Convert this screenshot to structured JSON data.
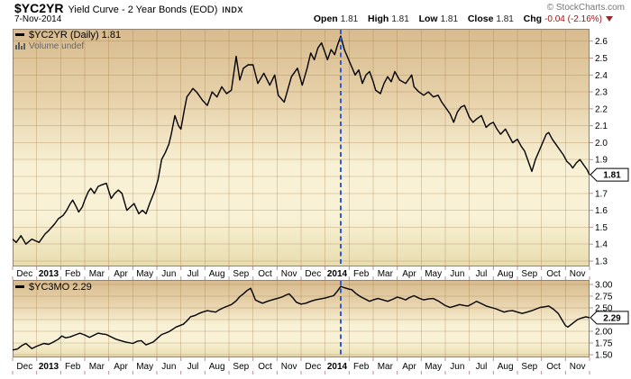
{
  "header": {
    "symbol": "$YC2YR",
    "description": "Yield Curve - 2 Year Bonds (EOD)",
    "exchange": "INDX",
    "copyright": "© StockCharts.com",
    "date": "7-Nov-2014",
    "quote": {
      "open_label": "Open",
      "open": "1.81",
      "high_label": "High",
      "high": "1.81",
      "low_label": "Low",
      "low": "1.81",
      "close_label": "Close",
      "close": "1.81",
      "chg_label": "Chg",
      "chg": "-0.04 (-2.16%)"
    }
  },
  "colors": {
    "line": "#000000",
    "dashed_vline": "#2E5BD8",
    "chg_negative": "#9d1010",
    "grid": "rgba(160,118,62,0.30)",
    "plot_border": "#94846F",
    "tick": "#C08F8F",
    "bg_top": "#D8BB8E",
    "bg_upper_mid": "#E7D2AB",
    "bg_mid": "#F8F1D5",
    "bg_bottom": "#E8DCAE",
    "muted_text": "#666666"
  },
  "chart_data": [
    {
      "type": "line",
      "name": "$YC2YR",
      "title": "Yield Curve - 2 Year Bonds (EOD)",
      "legend": "$YC2YR (Daily) 1.81",
      "legend2": "Volume undef",
      "last_label": "1.81",
      "last_value": 1.81,
      "x_unit": "months, Dec-2012 through Nov-2014",
      "categories": [
        "Dec",
        "2013",
        "Feb",
        "Mar",
        "Apr",
        "May",
        "Jun",
        "Jul",
        "Aug",
        "Sep",
        "Oct",
        "Nov",
        "Dec",
        "2014",
        "Feb",
        "Mar",
        "Apr",
        "May",
        "Jun",
        "Jul",
        "Aug",
        "Sep",
        "Oct",
        "Nov"
      ],
      "bold_categories": [
        1,
        13
      ],
      "ylim": [
        1.268,
        2.673
      ],
      "y_grid": [
        1.3,
        1.4,
        1.5,
        1.6,
        1.7,
        1.8,
        1.9,
        2.0,
        2.1,
        2.2,
        2.3,
        2.4,
        2.5,
        2.6
      ],
      "y_ticks": [
        {
          "v": 2.6,
          "label": "2.6"
        },
        {
          "v": 2.5,
          "label": "2.5"
        },
        {
          "v": 2.4,
          "label": "2.4"
        },
        {
          "v": 2.3,
          "label": "2.3"
        },
        {
          "v": 2.2,
          "label": "2.2"
        },
        {
          "v": 2.1,
          "label": "2.1"
        },
        {
          "v": 2.0,
          "label": "2.0"
        },
        {
          "v": 1.9,
          "label": "1.9"
        },
        {
          "v": 1.7,
          "label": "1.7"
        },
        {
          "v": 1.6,
          "label": "1.6"
        },
        {
          "v": 1.5,
          "label": "1.5"
        },
        {
          "v": 1.4,
          "label": "1.4"
        },
        {
          "v": 1.3,
          "label": "1.3"
        }
      ],
      "vline_month": 13.65,
      "points": [
        [
          0.0,
          1.43
        ],
        [
          0.15,
          1.41
        ],
        [
          0.35,
          1.45
        ],
        [
          0.55,
          1.4
        ],
        [
          0.8,
          1.43
        ],
        [
          1.1,
          1.41
        ],
        [
          1.35,
          1.46
        ],
        [
          1.5,
          1.48
        ],
        [
          1.75,
          1.52
        ],
        [
          1.9,
          1.55
        ],
        [
          2.1,
          1.57
        ],
        [
          2.25,
          1.6
        ],
        [
          2.4,
          1.64
        ],
        [
          2.5,
          1.66
        ],
        [
          2.65,
          1.62
        ],
        [
          2.75,
          1.59
        ],
        [
          2.9,
          1.62
        ],
        [
          3.0,
          1.66
        ],
        [
          3.15,
          1.71
        ],
        [
          3.25,
          1.73
        ],
        [
          3.4,
          1.7
        ],
        [
          3.55,
          1.74
        ],
        [
          3.7,
          1.75
        ],
        [
          3.9,
          1.76
        ],
        [
          4.1,
          1.67
        ],
        [
          4.25,
          1.7
        ],
        [
          4.4,
          1.72
        ],
        [
          4.55,
          1.7
        ],
        [
          4.75,
          1.6
        ],
        [
          4.9,
          1.62
        ],
        [
          5.05,
          1.64
        ],
        [
          5.25,
          1.58
        ],
        [
          5.4,
          1.6
        ],
        [
          5.55,
          1.58
        ],
        [
          5.7,
          1.64
        ],
        [
          5.9,
          1.71
        ],
        [
          6.05,
          1.78
        ],
        [
          6.2,
          1.9
        ],
        [
          6.35,
          1.94
        ],
        [
          6.5,
          1.99
        ],
        [
          6.6,
          2.05
        ],
        [
          6.75,
          2.16
        ],
        [
          6.9,
          2.1
        ],
        [
          7.0,
          2.08
        ],
        [
          7.15,
          2.2
        ],
        [
          7.25,
          2.27
        ],
        [
          7.4,
          2.3
        ],
        [
          7.5,
          2.32
        ],
        [
          7.65,
          2.3
        ],
        [
          7.75,
          2.28
        ],
        [
          7.9,
          2.25
        ],
        [
          8.1,
          2.22
        ],
        [
          8.3,
          2.3
        ],
        [
          8.5,
          2.27
        ],
        [
          8.7,
          2.33
        ],
        [
          8.9,
          2.29
        ],
        [
          9.1,
          2.31
        ],
        [
          9.3,
          2.51
        ],
        [
          9.45,
          2.37
        ],
        [
          9.6,
          2.44
        ],
        [
          9.8,
          2.46
        ],
        [
          10.0,
          2.46
        ],
        [
          10.2,
          2.35
        ],
        [
          10.45,
          2.41
        ],
        [
          10.7,
          2.34
        ],
        [
          10.9,
          2.4
        ],
        [
          11.05,
          2.28
        ],
        [
          11.3,
          2.24
        ],
        [
          11.6,
          2.39
        ],
        [
          11.85,
          2.44
        ],
        [
          12.05,
          2.34
        ],
        [
          12.25,
          2.44
        ],
        [
          12.4,
          2.53
        ],
        [
          12.55,
          2.49
        ],
        [
          12.7,
          2.56
        ],
        [
          12.85,
          2.59
        ],
        [
          13.0,
          2.53
        ],
        [
          13.1,
          2.49
        ],
        [
          13.25,
          2.55
        ],
        [
          13.4,
          2.52
        ],
        [
          13.5,
          2.57
        ],
        [
          13.65,
          2.63
        ],
        [
          13.8,
          2.55
        ],
        [
          13.95,
          2.5
        ],
        [
          14.1,
          2.45
        ],
        [
          14.25,
          2.4
        ],
        [
          14.4,
          2.43
        ],
        [
          14.55,
          2.35
        ],
        [
          14.7,
          2.4
        ],
        [
          14.85,
          2.42
        ],
        [
          15.0,
          2.36
        ],
        [
          15.1,
          2.31
        ],
        [
          15.3,
          2.29
        ],
        [
          15.45,
          2.35
        ],
        [
          15.6,
          2.39
        ],
        [
          15.75,
          2.36
        ],
        [
          15.9,
          2.42
        ],
        [
          16.1,
          2.37
        ],
        [
          16.35,
          2.35
        ],
        [
          16.5,
          2.38
        ],
        [
          16.6,
          2.4
        ],
        [
          16.7,
          2.33
        ],
        [
          16.9,
          2.3
        ],
        [
          17.1,
          2.28
        ],
        [
          17.3,
          2.3
        ],
        [
          17.5,
          2.27
        ],
        [
          17.7,
          2.28
        ],
        [
          17.85,
          2.24
        ],
        [
          18.0,
          2.21
        ],
        [
          18.2,
          2.17
        ],
        [
          18.35,
          2.12
        ],
        [
          18.5,
          2.18
        ],
        [
          18.65,
          2.21
        ],
        [
          18.8,
          2.22
        ],
        [
          19.0,
          2.15
        ],
        [
          19.15,
          2.12
        ],
        [
          19.3,
          2.14
        ],
        [
          19.5,
          2.16
        ],
        [
          19.7,
          2.09
        ],
        [
          19.85,
          2.11
        ],
        [
          20.0,
          2.12
        ],
        [
          20.15,
          2.08
        ],
        [
          20.3,
          2.05
        ],
        [
          20.5,
          2.08
        ],
        [
          20.65,
          2.04
        ],
        [
          20.8,
          2.0
        ],
        [
          21.0,
          2.02
        ],
        [
          21.15,
          1.98
        ],
        [
          21.3,
          1.95
        ],
        [
          21.45,
          1.89
        ],
        [
          21.6,
          1.83
        ],
        [
          21.75,
          1.9
        ],
        [
          21.9,
          1.95
        ],
        [
          22.05,
          2.0
        ],
        [
          22.2,
          2.05
        ],
        [
          22.3,
          2.06
        ],
        [
          22.45,
          2.02
        ],
        [
          22.6,
          1.99
        ],
        [
          22.75,
          1.96
        ],
        [
          22.9,
          1.93
        ],
        [
          23.05,
          1.89
        ],
        [
          23.2,
          1.87
        ],
        [
          23.3,
          1.85
        ],
        [
          23.45,
          1.88
        ],
        [
          23.6,
          1.9
        ],
        [
          23.75,
          1.87
        ],
        [
          23.9,
          1.84
        ],
        [
          24.0,
          1.81
        ]
      ]
    },
    {
      "type": "line",
      "name": "$YC3MO",
      "legend": "$YC3MO 2.29",
      "last_label": "2.29",
      "last_value": 2.29,
      "x_unit": "months, Dec-2012 through Nov-2014",
      "categories": [
        "Dec",
        "2013",
        "Feb",
        "Mar",
        "Apr",
        "May",
        "Jun",
        "Jul",
        "Aug",
        "Sep",
        "Oct",
        "Nov",
        "Dec",
        "2014",
        "Feb",
        "Mar",
        "Apr",
        "May",
        "Jun",
        "Jul",
        "Aug",
        "Sep",
        "Oct",
        "Nov"
      ],
      "bold_categories": [
        1,
        13
      ],
      "ylim": [
        1.442,
        3.096
      ],
      "y_grid": [
        1.5,
        1.75,
        2.0,
        2.25,
        2.5,
        2.75,
        3.0
      ],
      "y_ticks": [
        {
          "v": 3.0,
          "label": "3.00"
        },
        {
          "v": 2.75,
          "label": "2.75"
        },
        {
          "v": 2.5,
          "label": "2.50"
        },
        {
          "v": 2.0,
          "label": "2.00"
        },
        {
          "v": 1.75,
          "label": "1.75"
        },
        {
          "v": 1.5,
          "label": "1.50"
        }
      ],
      "vline_month": 13.65,
      "points": [
        [
          0.0,
          1.6
        ],
        [
          0.2,
          1.62
        ],
        [
          0.4,
          1.7
        ],
        [
          0.55,
          1.74
        ],
        [
          0.8,
          1.63
        ],
        [
          1.0,
          1.68
        ],
        [
          1.3,
          1.74
        ],
        [
          1.5,
          1.72
        ],
        [
          1.7,
          1.77
        ],
        [
          1.9,
          1.83
        ],
        [
          2.05,
          1.9
        ],
        [
          2.2,
          1.86
        ],
        [
          2.4,
          1.88
        ],
        [
          2.6,
          1.92
        ],
        [
          2.8,
          1.96
        ],
        [
          3.0,
          1.92
        ],
        [
          3.2,
          1.87
        ],
        [
          3.4,
          1.92
        ],
        [
          3.55,
          1.96
        ],
        [
          3.75,
          1.94
        ],
        [
          3.9,
          1.93
        ],
        [
          4.1,
          1.88
        ],
        [
          4.3,
          1.83
        ],
        [
          4.5,
          1.8
        ],
        [
          4.7,
          1.77
        ],
        [
          5.0,
          1.74
        ],
        [
          5.2,
          1.79
        ],
        [
          5.35,
          1.8
        ],
        [
          5.55,
          1.71
        ],
        [
          5.7,
          1.74
        ],
        [
          5.85,
          1.77
        ],
        [
          6.0,
          1.84
        ],
        [
          6.2,
          1.93
        ],
        [
          6.35,
          1.96
        ],
        [
          6.5,
          1.99
        ],
        [
          6.65,
          2.04
        ],
        [
          6.8,
          2.09
        ],
        [
          7.0,
          2.13
        ],
        [
          7.1,
          2.15
        ],
        [
          7.25,
          2.22
        ],
        [
          7.4,
          2.31
        ],
        [
          7.6,
          2.34
        ],
        [
          7.75,
          2.38
        ],
        [
          7.9,
          2.41
        ],
        [
          8.1,
          2.44
        ],
        [
          8.3,
          2.42
        ],
        [
          8.45,
          2.41
        ],
        [
          8.6,
          2.46
        ],
        [
          8.8,
          2.51
        ],
        [
          9.0,
          2.55
        ],
        [
          9.1,
          2.57
        ],
        [
          9.3,
          2.65
        ],
        [
          9.45,
          2.74
        ],
        [
          9.6,
          2.8
        ],
        [
          9.75,
          2.87
        ],
        [
          9.9,
          2.92
        ],
        [
          10.0,
          2.8
        ],
        [
          10.1,
          2.67
        ],
        [
          10.25,
          2.63
        ],
        [
          10.4,
          2.6
        ],
        [
          10.6,
          2.64
        ],
        [
          10.8,
          2.67
        ],
        [
          11.0,
          2.7
        ],
        [
          11.2,
          2.73
        ],
        [
          11.35,
          2.77
        ],
        [
          11.5,
          2.8
        ],
        [
          11.65,
          2.72
        ],
        [
          11.8,
          2.62
        ],
        [
          12.0,
          2.58
        ],
        [
          12.2,
          2.6
        ],
        [
          12.4,
          2.64
        ],
        [
          12.6,
          2.67
        ],
        [
          12.8,
          2.69
        ],
        [
          13.0,
          2.71
        ],
        [
          13.2,
          2.74
        ],
        [
          13.35,
          2.76
        ],
        [
          13.5,
          2.85
        ],
        [
          13.65,
          2.96
        ],
        [
          13.8,
          2.93
        ],
        [
          14.0,
          2.9
        ],
        [
          14.1,
          2.89
        ],
        [
          14.3,
          2.8
        ],
        [
          14.5,
          2.73
        ],
        [
          14.7,
          2.68
        ],
        [
          14.85,
          2.64
        ],
        [
          15.0,
          2.67
        ],
        [
          15.2,
          2.7
        ],
        [
          15.4,
          2.67
        ],
        [
          15.6,
          2.64
        ],
        [
          15.8,
          2.68
        ],
        [
          16.0,
          2.73
        ],
        [
          16.2,
          2.7
        ],
        [
          16.35,
          2.67
        ],
        [
          16.5,
          2.72
        ],
        [
          16.7,
          2.76
        ],
        [
          16.9,
          2.71
        ],
        [
          17.1,
          2.67
        ],
        [
          17.3,
          2.69
        ],
        [
          17.5,
          2.7
        ],
        [
          17.7,
          2.65
        ],
        [
          17.85,
          2.6
        ],
        [
          18.0,
          2.55
        ],
        [
          18.2,
          2.51
        ],
        [
          18.4,
          2.54
        ],
        [
          18.6,
          2.57
        ],
        [
          18.8,
          2.55
        ],
        [
          18.95,
          2.54
        ],
        [
          19.1,
          2.58
        ],
        [
          19.3,
          2.64
        ],
        [
          19.5,
          2.59
        ],
        [
          19.7,
          2.54
        ],
        [
          19.9,
          2.51
        ],
        [
          20.1,
          2.48
        ],
        [
          20.3,
          2.44
        ],
        [
          20.45,
          2.41
        ],
        [
          20.6,
          2.43
        ],
        [
          20.8,
          2.44
        ],
        [
          21.0,
          2.41
        ],
        [
          21.2,
          2.38
        ],
        [
          21.4,
          2.41
        ],
        [
          21.6,
          2.44
        ],
        [
          21.8,
          2.48
        ],
        [
          21.95,
          2.51
        ],
        [
          22.1,
          2.52
        ],
        [
          22.3,
          2.54
        ],
        [
          22.5,
          2.47
        ],
        [
          22.7,
          2.38
        ],
        [
          22.85,
          2.25
        ],
        [
          23.0,
          2.12
        ],
        [
          23.1,
          2.09
        ],
        [
          23.25,
          2.15
        ],
        [
          23.4,
          2.21
        ],
        [
          23.5,
          2.25
        ],
        [
          23.65,
          2.28
        ],
        [
          23.85,
          2.31
        ],
        [
          24.0,
          2.29
        ]
      ]
    }
  ]
}
